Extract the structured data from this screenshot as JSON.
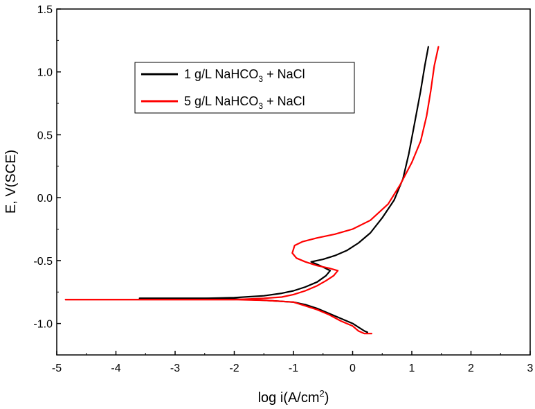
{
  "chart_data": {
    "type": "line",
    "title": "",
    "xlabel": "log i(A/cm",
    "xlabel_sup": "2",
    "xlabel_tail": ")",
    "ylabel": "E, V(SCE)",
    "xlim": [
      -5,
      3
    ],
    "ylim": [
      -1.25,
      1.5
    ],
    "xticks": [
      -5,
      -4,
      -3,
      -2,
      -1,
      0,
      1,
      2,
      3
    ],
    "xtick_labels": [
      "-5",
      "-4",
      "-3",
      "-2",
      "-1",
      "0",
      "1",
      "2",
      "3"
    ],
    "yticks": [
      -1.0,
      -0.5,
      0.0,
      0.5,
      1.0,
      1.5
    ],
    "ytick_labels": [
      "-1.0",
      "-0.5",
      "0.0",
      "0.5",
      "1.0",
      "1.5"
    ],
    "grid": false,
    "legend_position": "top-left",
    "series": [
      {
        "name": "1 g/L NaHCO3 + NaCl",
        "legend_label": {
          "before": "1 g/L NaHCO",
          "sub": "3",
          "after": " + NaCl"
        },
        "color": "#000000",
        "cathodic": [
          [
            -3.6,
            -0.8
          ],
          [
            -3.0,
            -0.8
          ],
          [
            -2.5,
            -0.8
          ],
          [
            -2.0,
            -0.805
          ],
          [
            -1.5,
            -0.815
          ],
          [
            -1.0,
            -0.83
          ],
          [
            -0.8,
            -0.85
          ],
          [
            -0.6,
            -0.88
          ],
          [
            -0.4,
            -0.92
          ],
          [
            -0.2,
            -0.96
          ],
          [
            0.0,
            -1.0
          ],
          [
            0.1,
            -1.03
          ],
          [
            0.2,
            -1.06
          ],
          [
            0.25,
            -1.07
          ]
        ],
        "anodic": [
          [
            -3.6,
            -0.8
          ],
          [
            -3.0,
            -0.8
          ],
          [
            -2.5,
            -0.8
          ],
          [
            -2.0,
            -0.795
          ],
          [
            -1.5,
            -0.78
          ],
          [
            -1.2,
            -0.76
          ],
          [
            -1.0,
            -0.74
          ],
          [
            -0.8,
            -0.71
          ],
          [
            -0.6,
            -0.67
          ],
          [
            -0.45,
            -0.62
          ],
          [
            -0.38,
            -0.58
          ],
          [
            -0.55,
            -0.54
          ],
          [
            -0.7,
            -0.51
          ],
          [
            -0.5,
            -0.49
          ],
          [
            -0.3,
            -0.46
          ],
          [
            -0.1,
            -0.42
          ],
          [
            0.1,
            -0.36
          ],
          [
            0.3,
            -0.28
          ],
          [
            0.5,
            -0.16
          ],
          [
            0.7,
            -0.02
          ],
          [
            0.85,
            0.15
          ],
          [
            0.95,
            0.35
          ],
          [
            1.05,
            0.6
          ],
          [
            1.15,
            0.85
          ],
          [
            1.22,
            1.05
          ],
          [
            1.28,
            1.2
          ]
        ]
      },
      {
        "name": "5 g/L NaHCO3 + NaCl",
        "legend_label": {
          "before": "5 g/L NaHCO",
          "sub": "3",
          "after": " + NaCl"
        },
        "color": "#ff0000",
        "cathodic": [
          [
            -4.85,
            -0.81
          ],
          [
            -4.0,
            -0.81
          ],
          [
            -3.0,
            -0.81
          ],
          [
            -2.0,
            -0.81
          ],
          [
            -1.5,
            -0.815
          ],
          [
            -1.0,
            -0.83
          ],
          [
            -0.8,
            -0.86
          ],
          [
            -0.6,
            -0.89
          ],
          [
            -0.4,
            -0.93
          ],
          [
            -0.2,
            -0.98
          ],
          [
            0.0,
            -1.02
          ],
          [
            0.1,
            -1.06
          ],
          [
            0.2,
            -1.08
          ],
          [
            0.32,
            -1.08
          ]
        ],
        "anodic": [
          [
            -4.85,
            -0.81
          ],
          [
            -4.0,
            -0.81
          ],
          [
            -3.0,
            -0.81
          ],
          [
            -2.0,
            -0.81
          ],
          [
            -1.5,
            -0.8
          ],
          [
            -1.2,
            -0.79
          ],
          [
            -1.0,
            -0.77
          ],
          [
            -0.8,
            -0.74
          ],
          [
            -0.6,
            -0.7
          ],
          [
            -0.45,
            -0.66
          ],
          [
            -0.32,
            -0.62
          ],
          [
            -0.25,
            -0.58
          ],
          [
            -0.4,
            -0.56
          ],
          [
            -0.6,
            -0.54
          ],
          [
            -0.8,
            -0.51
          ],
          [
            -0.95,
            -0.48
          ],
          [
            -1.02,
            -0.44
          ],
          [
            -0.98,
            -0.38
          ],
          [
            -0.85,
            -0.35
          ],
          [
            -0.6,
            -0.32
          ],
          [
            -0.3,
            -0.29
          ],
          [
            0.0,
            -0.25
          ],
          [
            0.3,
            -0.18
          ],
          [
            0.6,
            -0.05
          ],
          [
            0.8,
            0.1
          ],
          [
            1.0,
            0.28
          ],
          [
            1.15,
            0.45
          ],
          [
            1.25,
            0.65
          ],
          [
            1.32,
            0.85
          ],
          [
            1.38,
            1.05
          ],
          [
            1.45,
            1.2
          ]
        ]
      }
    ]
  }
}
